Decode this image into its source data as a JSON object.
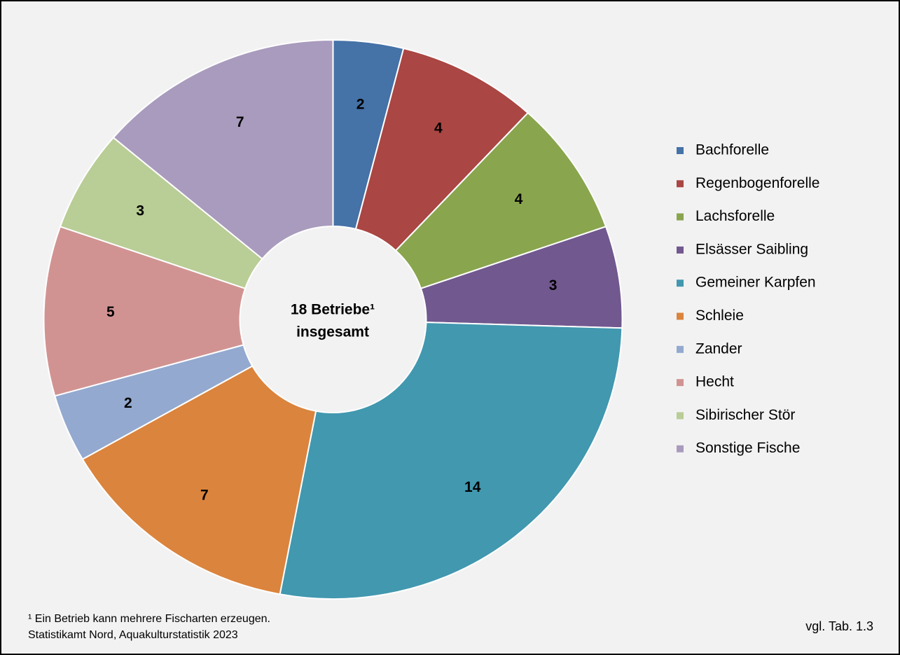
{
  "chart_data": {
    "type": "donut",
    "categories": [
      "Bachforelle",
      "Regenbogenforelle",
      "Lachsforelle",
      "Elsässer Saibling",
      "Gemeiner Karpfen",
      "Schleie",
      "Zander",
      "Hecht",
      "Sibirischer Stör",
      "Sonstige Fische"
    ],
    "values": [
      2,
      4,
      4,
      3,
      14,
      7,
      2,
      5,
      3,
      7
    ],
    "colors": [
      "#4572a7",
      "#aa4643",
      "#89a54e",
      "#71588f",
      "#4198af",
      "#db843d",
      "#93a9cf",
      "#d19392",
      "#b9cd96",
      "#a99bbd"
    ],
    "center_label": [
      "18 Betriebe¹",
      "insgesamt"
    ],
    "legend": "right",
    "footnote": [
      "¹ Ein Betrieb kann mehrere Fischarten erzeugen.",
      "Statistikamt  Nord, Aquakulturstatistik  2023"
    ],
    "source": "vgl. Tab. 1.3"
  }
}
